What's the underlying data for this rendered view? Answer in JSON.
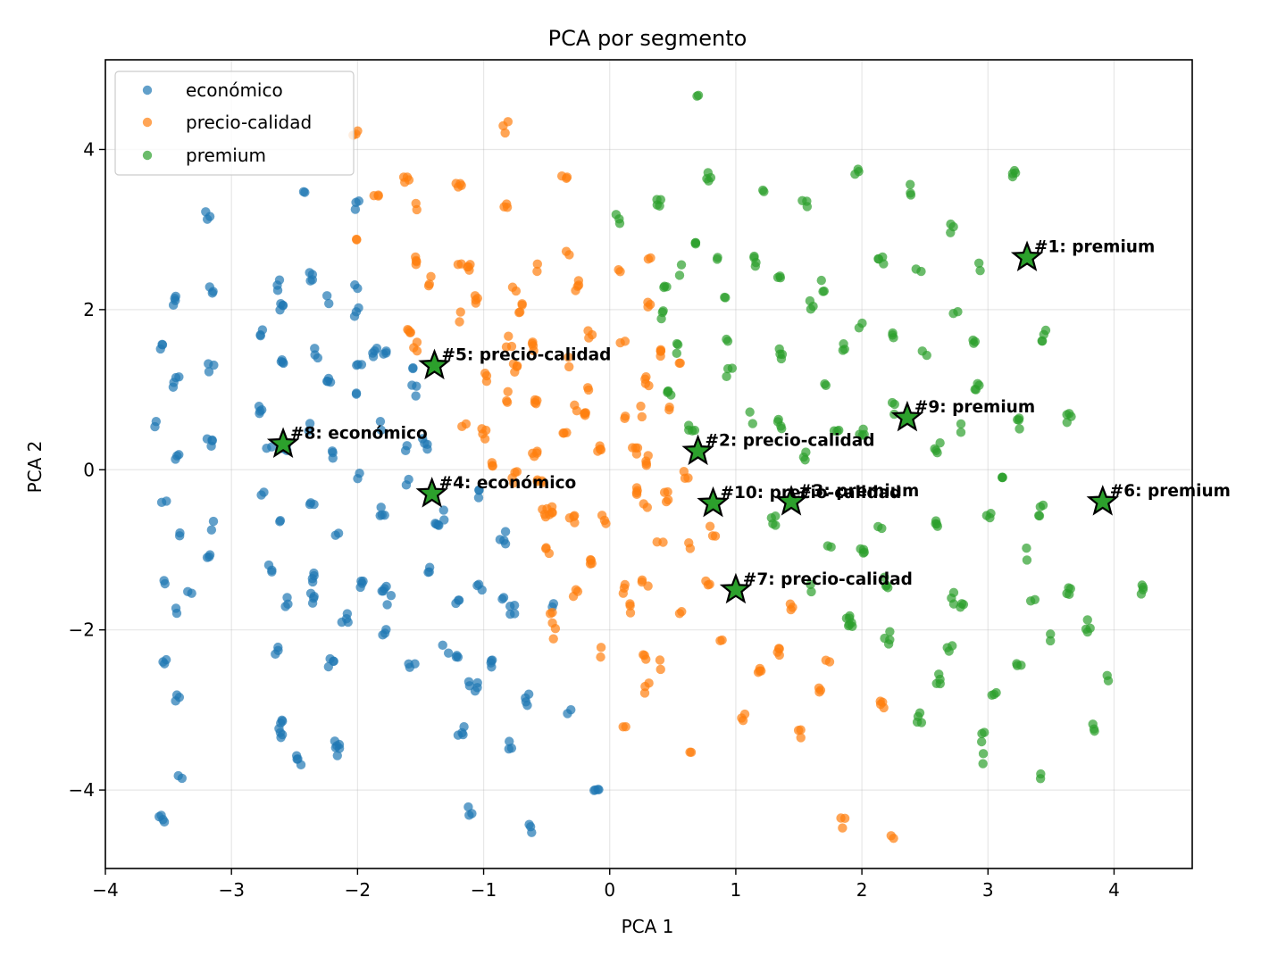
{
  "chart_data": {
    "type": "scatter",
    "title": "PCA por segmento",
    "xlabel": "PCA 1",
    "ylabel": "PCA 2",
    "xlim": [
      -4.0,
      4.62
    ],
    "ylim": [
      -4.98,
      5.12
    ],
    "xticks": [
      -4,
      -3,
      -2,
      -1,
      0,
      1,
      2,
      3,
      4
    ],
    "yticks": [
      -4,
      -2,
      0,
      2,
      4
    ],
    "xtick_labels": [
      "−4",
      "−3",
      "−2",
      "−1",
      "0",
      "1",
      "2",
      "3",
      "4"
    ],
    "ytick_labels": [
      "−4",
      "−2",
      "0",
      "2",
      "4"
    ],
    "grid": true,
    "legend_position": "top-left",
    "series": [
      {
        "name": "económico",
        "color": "#1f77b4",
        "points": [
          [
            -3.55,
            1.5
          ],
          [
            -3.45,
            2.1
          ],
          [
            -3.44,
            1.1
          ],
          [
            -3.44,
            0.14
          ],
          [
            -3.54,
            -0.4
          ],
          [
            -3.59,
            0.58
          ],
          [
            -3.43,
            -0.83
          ],
          [
            -3.54,
            -1.4
          ],
          [
            -3.42,
            -1.8
          ],
          [
            -3.54,
            -2.4
          ],
          [
            -3.43,
            -2.85
          ],
          [
            -3.41,
            -3.78
          ],
          [
            -3.55,
            -4.36
          ],
          [
            -3.18,
            3.2
          ],
          [
            -3.17,
            2.22
          ],
          [
            -3.16,
            1.27
          ],
          [
            -3.17,
            0.32
          ],
          [
            -3.16,
            -0.7
          ],
          [
            -3.17,
            -1.13
          ],
          [
            -3.33,
            -1.6
          ],
          [
            -2.75,
            1.67
          ],
          [
            -2.77,
            0.77
          ],
          [
            -2.7,
            0.22
          ],
          [
            -2.74,
            -0.3
          ],
          [
            -2.7,
            -1.25
          ],
          [
            -2.65,
            -2.23
          ],
          [
            -2.62,
            -3.12
          ],
          [
            -2.62,
            -3.3
          ],
          [
            -2.63,
            2.3
          ],
          [
            -2.6,
            2.0
          ],
          [
            -2.6,
            1.3
          ],
          [
            -2.58,
            0.25
          ],
          [
            -2.6,
            -0.65
          ],
          [
            -2.55,
            -1.67
          ],
          [
            -2.46,
            -3.63
          ],
          [
            -2.42,
            3.43
          ],
          [
            -2.38,
            2.42
          ],
          [
            -2.32,
            1.47
          ],
          [
            -2.37,
            0.55
          ],
          [
            -2.36,
            -0.4
          ],
          [
            -2.35,
            -1.35
          ],
          [
            -2.35,
            -1.6
          ],
          [
            -2.21,
            -2.4
          ],
          [
            -2.22,
            2.15
          ],
          [
            -2.22,
            1.1
          ],
          [
            -2.2,
            0.17
          ],
          [
            -2.15,
            -0.8
          ],
          [
            -2.16,
            -3.42
          ],
          [
            -2.1,
            -1.85
          ],
          [
            -2.15,
            -3.5
          ],
          [
            -2.0,
            3.28
          ],
          [
            -2.0,
            2.27
          ],
          [
            -1.99,
            1.25
          ],
          [
            -1.99,
            0.93
          ],
          [
            -2.0,
            -0.05
          ],
          [
            -1.97,
            -1.43
          ],
          [
            -2.01,
            1.96
          ],
          [
            -1.86,
            1.45
          ],
          [
            -1.81,
            0.53
          ],
          [
            -1.77,
            1.49
          ],
          [
            -1.8,
            -0.5
          ],
          [
            -1.79,
            -1.47
          ],
          [
            -1.78,
            -2.06
          ],
          [
            -1.74,
            -1.61
          ],
          [
            -1.63,
            0.26
          ],
          [
            -1.55,
            0.98
          ],
          [
            -1.57,
            -2.5
          ],
          [
            -1.6,
            -0.18
          ],
          [
            -1.56,
            1.2
          ],
          [
            -1.45,
            -1.25
          ],
          [
            -1.46,
            0.33
          ],
          [
            -1.37,
            -0.72
          ],
          [
            -1.3,
            -2.22
          ],
          [
            -1.33,
            -0.55
          ],
          [
            -1.21,
            -1.62
          ],
          [
            -1.18,
            -3.27
          ],
          [
            -1.2,
            -2.36
          ],
          [
            -1.1,
            -2.7
          ],
          [
            -1.02,
            -0.32
          ],
          [
            -1.03,
            -1.43
          ],
          [
            -1.05,
            -2.7
          ],
          [
            -1.1,
            -4.27
          ],
          [
            -0.95,
            -2.4
          ],
          [
            -0.85,
            -0.85
          ],
          [
            -0.83,
            -1.57
          ],
          [
            -0.77,
            -1.75
          ],
          [
            -0.78,
            -3.45
          ],
          [
            -0.65,
            -2.88
          ],
          [
            -0.62,
            -4.49
          ],
          [
            -0.45,
            -1.75
          ],
          [
            -0.33,
            -3.02
          ],
          [
            -0.11,
            -4.06
          ]
        ]
      },
      {
        "name": "precio-calidad",
        "color": "#ff7f0e",
        "points": [
          [
            -2.02,
            4.18
          ],
          [
            -1.85,
            3.46
          ],
          [
            -2.03,
            2.9
          ],
          [
            -1.61,
            3.63
          ],
          [
            -1.52,
            3.27
          ],
          [
            -1.55,
            2.6
          ],
          [
            -1.42,
            2.35
          ],
          [
            -1.6,
            1.7
          ],
          [
            -1.55,
            1.52
          ],
          [
            -1.2,
            3.5
          ],
          [
            -1.12,
            2.5
          ],
          [
            -1.19,
            2.57
          ],
          [
            -1.05,
            2.1
          ],
          [
            -1.18,
            1.92
          ],
          [
            -1.0,
            1.17
          ],
          [
            -1.15,
            0.6
          ],
          [
            -1.0,
            0.45
          ],
          [
            -0.83,
            4.27
          ],
          [
            -0.82,
            3.28
          ],
          [
            -0.75,
            2.3
          ],
          [
            -0.7,
            2.0
          ],
          [
            -0.8,
            1.6
          ],
          [
            -0.75,
            1.28
          ],
          [
            -0.8,
            0.9
          ],
          [
            -0.95,
            0.1
          ],
          [
            -0.76,
            -0.1
          ],
          [
            -0.58,
            2.52
          ],
          [
            -0.59,
            1.55
          ],
          [
            -0.57,
            0.9
          ],
          [
            -0.6,
            0.22
          ],
          [
            -0.55,
            -0.2
          ],
          [
            -0.47,
            -0.5
          ],
          [
            -0.52,
            -0.55
          ],
          [
            -0.5,
            -1.05
          ],
          [
            -0.47,
            -1.85
          ],
          [
            -0.36,
            3.6
          ],
          [
            -0.33,
            2.65
          ],
          [
            -0.27,
            2.3
          ],
          [
            -0.34,
            1.35
          ],
          [
            -0.28,
            0.77
          ],
          [
            -0.35,
            0.5
          ],
          [
            -0.3,
            -0.62
          ],
          [
            -0.27,
            -1.52
          ],
          [
            -0.43,
            -2.06
          ],
          [
            -0.15,
            1.7
          ],
          [
            -0.15,
            1.0
          ],
          [
            -0.18,
            0.65
          ],
          [
            -0.08,
            0.3
          ],
          [
            -0.14,
            -1.1
          ],
          [
            -0.04,
            -0.63
          ],
          [
            -0.05,
            -2.28
          ],
          [
            0.07,
            2.5
          ],
          [
            0.1,
            1.63
          ],
          [
            0.12,
            0.62
          ],
          [
            0.2,
            0.27
          ],
          [
            0.2,
            -0.3
          ],
          [
            0.1,
            -1.5
          ],
          [
            0.15,
            -1.75
          ],
          [
            0.12,
            -3.27
          ],
          [
            0.3,
            2.67
          ],
          [
            0.3,
            2.1
          ],
          [
            0.3,
            1.1
          ],
          [
            0.25,
            0.72
          ],
          [
            0.3,
            0.12
          ],
          [
            0.28,
            -0.48
          ],
          [
            0.28,
            -1.45
          ],
          [
            0.28,
            -2.35
          ],
          [
            0.3,
            -2.73
          ],
          [
            0.42,
            1.43
          ],
          [
            0.45,
            0.82
          ],
          [
            0.45,
            -0.35
          ],
          [
            0.4,
            -0.85
          ],
          [
            0.42,
            -2.45
          ],
          [
            0.55,
            -1.85
          ],
          [
            0.6,
            -0.07
          ],
          [
            0.56,
            1.3
          ],
          [
            0.63,
            -0.95
          ],
          [
            0.63,
            -3.5
          ],
          [
            0.77,
            -1.45
          ],
          [
            0.82,
            -0.78
          ],
          [
            0.9,
            -2.06
          ],
          [
            1.05,
            -3.13
          ],
          [
            1.2,
            -2.55
          ],
          [
            1.35,
            -2.28
          ],
          [
            1.45,
            -1.7
          ],
          [
            1.5,
            -3.27
          ],
          [
            1.72,
            -2.4
          ],
          [
            1.68,
            -2.75
          ],
          [
            1.85,
            -4.41
          ],
          [
            2.15,
            -2.95
          ],
          [
            2.25,
            -4.59
          ]
        ]
      },
      {
        "name": "premium",
        "color": "#2ca02c",
        "points": [
          [
            0.7,
            4.65
          ],
          [
            0.78,
            3.65
          ],
          [
            0.68,
            2.8
          ],
          [
            0.55,
            2.5
          ],
          [
            0.4,
            1.93
          ],
          [
            0.45,
            2.3
          ],
          [
            0.55,
            1.52
          ],
          [
            0.65,
            0.5
          ],
          [
            0.48,
            1.0
          ],
          [
            0.07,
            3.13
          ],
          [
            0.38,
            3.3
          ],
          [
            0.87,
            2.65
          ],
          [
            0.92,
            2.15
          ],
          [
            0.95,
            1.65
          ],
          [
            0.95,
            1.2
          ],
          [
            1.12,
            0.65
          ],
          [
            1.2,
            3.47
          ],
          [
            1.35,
            2.47
          ],
          [
            1.15,
            2.6
          ],
          [
            1.35,
            1.45
          ],
          [
            1.35,
            0.55
          ],
          [
            1.3,
            -0.65
          ],
          [
            1.55,
            3.33
          ],
          [
            1.6,
            2.05
          ],
          [
            1.68,
            2.3
          ],
          [
            1.7,
            1.0
          ],
          [
            1.55,
            0.15
          ],
          [
            1.75,
            -0.9
          ],
          [
            1.6,
            -1.48
          ],
          [
            1.85,
            1.55
          ],
          [
            1.8,
            0.42
          ],
          [
            1.9,
            -1.9
          ],
          [
            1.95,
            3.68
          ],
          [
            1.98,
            1.8
          ],
          [
            2.0,
            0.5
          ],
          [
            2.0,
            -1.05
          ],
          [
            2.15,
            2.62
          ],
          [
            2.15,
            -0.75
          ],
          [
            2.2,
            -2.1
          ],
          [
            2.23,
            1.65
          ],
          [
            2.25,
            0.77
          ],
          [
            2.2,
            -1.42
          ],
          [
            2.4,
            3.5
          ],
          [
            2.45,
            2.5
          ],
          [
            2.5,
            1.45
          ],
          [
            2.6,
            0.28
          ],
          [
            2.6,
            -0.65
          ],
          [
            2.6,
            -2.6
          ],
          [
            2.7,
            -2.27
          ],
          [
            2.75,
            2.0
          ],
          [
            2.8,
            0.5
          ],
          [
            2.8,
            -1.7
          ],
          [
            2.72,
            -1.6
          ],
          [
            2.45,
            -3.1
          ],
          [
            2.9,
            1.55
          ],
          [
            2.92,
            1.0
          ],
          [
            2.95,
            2.52
          ],
          [
            3.0,
            -0.6
          ],
          [
            3.05,
            -2.8
          ],
          [
            3.1,
            -0.05
          ],
          [
            2.95,
            -3.62
          ],
          [
            2.95,
            -3.35
          ],
          [
            3.22,
            3.7
          ],
          [
            3.25,
            0.58
          ],
          [
            3.25,
            -2.5
          ],
          [
            3.3,
            -1.05
          ],
          [
            3.35,
            -1.65
          ],
          [
            3.42,
            -3.85
          ],
          [
            3.45,
            1.67
          ],
          [
            3.42,
            -0.5
          ],
          [
            3.5,
            -2.12
          ],
          [
            3.65,
            0.65
          ],
          [
            3.65,
            -1.53
          ],
          [
            3.8,
            -1.95
          ],
          [
            3.83,
            -3.2
          ],
          [
            3.97,
            -2.62
          ],
          [
            4.22,
            -1.5
          ],
          [
            2.72,
            3.0
          ],
          [
            1.9,
            -1.9
          ]
        ]
      }
    ],
    "highlights": [
      {
        "x": 3.31,
        "y": 2.65,
        "label": "#1: premium"
      },
      {
        "x": 0.7,
        "y": 0.23,
        "label": "#2: precio-calidad"
      },
      {
        "x": 1.44,
        "y": -0.4,
        "label": "#3: premium"
      },
      {
        "x": -1.41,
        "y": -0.3,
        "label": "#4: económico"
      },
      {
        "x": -1.39,
        "y": 1.3,
        "label": "#5: precio-calidad"
      },
      {
        "x": 3.91,
        "y": -0.4,
        "label": "#6: premium"
      },
      {
        "x": 1.0,
        "y": -1.5,
        "label": "#7: precio-calidad"
      },
      {
        "x": -2.59,
        "y": 0.32,
        "label": "#8: económico"
      },
      {
        "x": 2.36,
        "y": 0.65,
        "label": "#9: premium"
      },
      {
        "x": 0.82,
        "y": -0.42,
        "label": "#10: precio-calidad"
      }
    ],
    "highlight_color": "#2ca02c"
  }
}
